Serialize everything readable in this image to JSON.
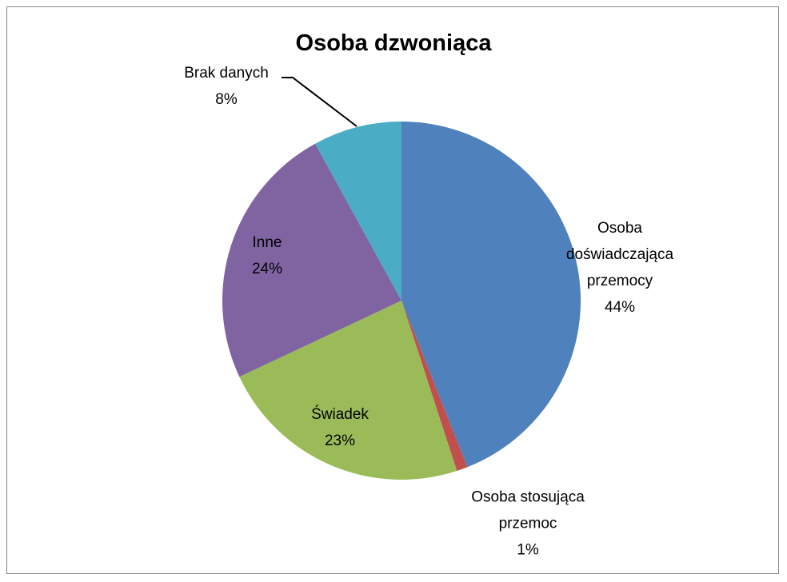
{
  "chart_data": {
    "type": "pie",
    "title": "Osoba dzwoniąca",
    "categories": [
      "Osoba doświadczająca przemocy",
      "Osoba stosująca przemoc",
      "Świadek",
      "Inne",
      "Brak danych"
    ],
    "values": [
      44,
      1,
      23,
      24,
      8
    ],
    "value_labels": [
      "44%",
      "1%",
      "23%",
      "24%",
      "8%"
    ],
    "colors": [
      "#4f81bd",
      "#c0504d",
      "#9bbb59",
      "#8064a2",
      "#4bacc6"
    ]
  }
}
